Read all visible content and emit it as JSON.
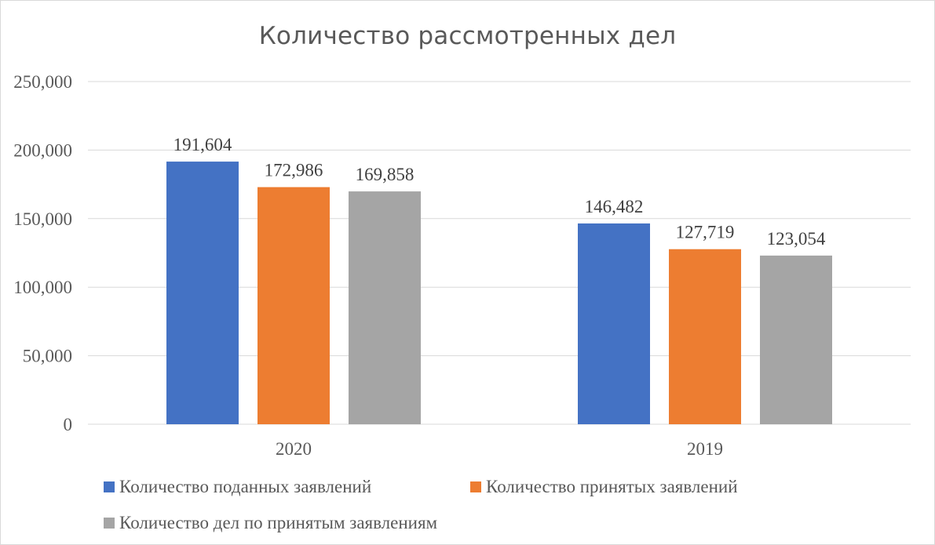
{
  "chart_data": {
    "type": "bar",
    "title": "Количество рассмотренных дел",
    "categories": [
      "2020",
      "2019"
    ],
    "series": [
      {
        "name": "Количество поданных заявлений",
        "values": [
          191604,
          146482
        ],
        "color": "#4472c4"
      },
      {
        "name": "Количество принятых заявлений",
        "values": [
          172986,
          127719
        ],
        "color": "#ed7d31"
      },
      {
        "name": "Количество дел по принятым заявлениям",
        "values": [
          169858,
          123054
        ],
        "color": "#a5a5a5"
      }
    ],
    "data_labels": [
      [
        "191,604",
        "146,482"
      ],
      [
        "172,986",
        "127,719"
      ],
      [
        "169,858",
        "123,054"
      ]
    ],
    "yticks": [
      0,
      50000,
      100000,
      150000,
      200000,
      250000
    ],
    "ytick_labels": [
      "0",
      "50,000",
      "100,000",
      "150,000",
      "200,000",
      "250,000"
    ],
    "ylim": [
      0,
      250000
    ],
    "xlabel": "",
    "ylabel": "",
    "grid": true,
    "legend_position": "bottom"
  }
}
